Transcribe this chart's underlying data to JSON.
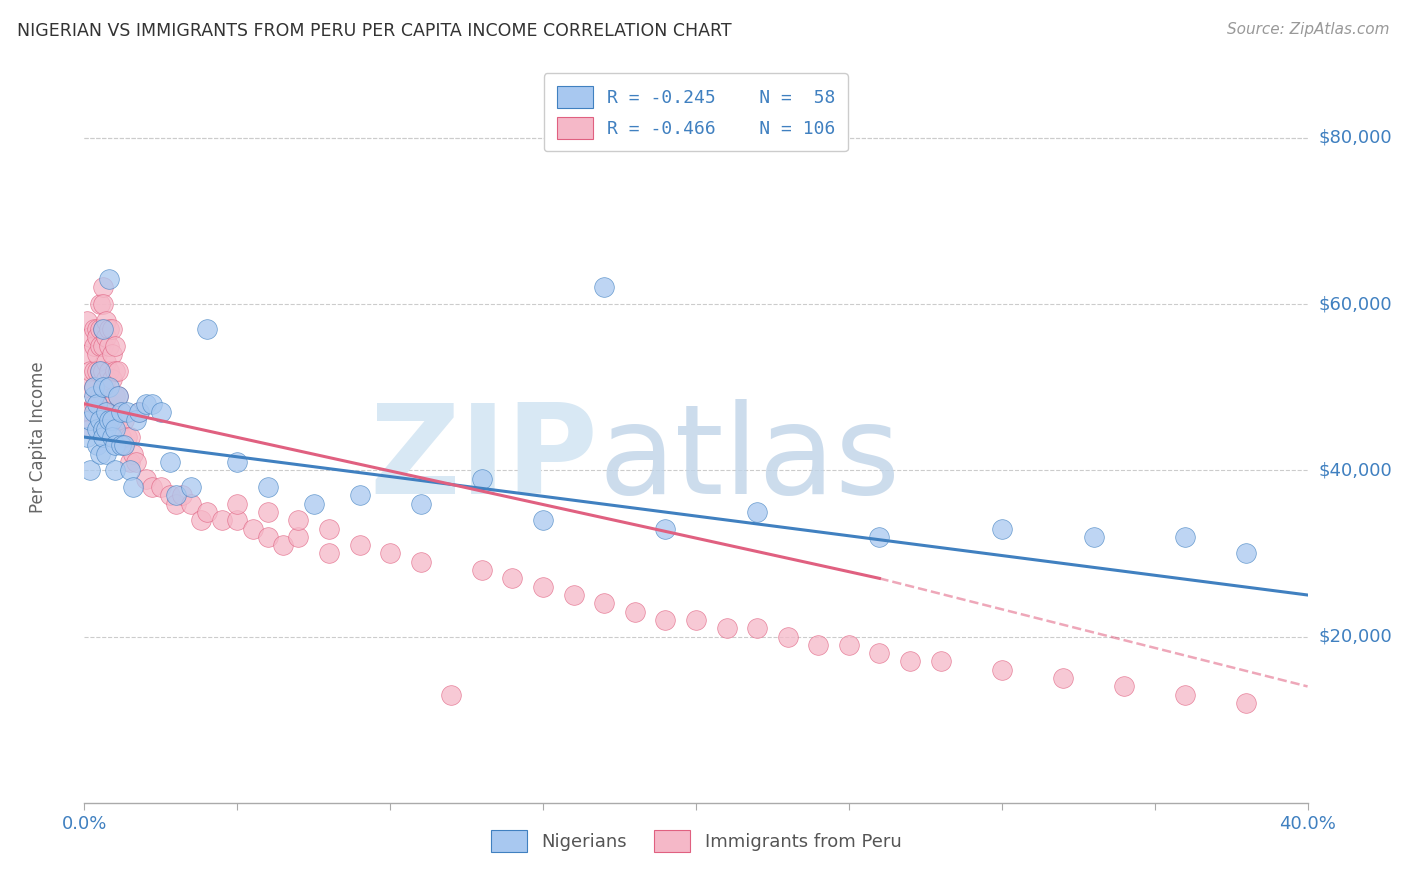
{
  "title": "NIGERIAN VS IMMIGRANTS FROM PERU PER CAPITA INCOME CORRELATION CHART",
  "source": "Source: ZipAtlas.com",
  "ylabel": "Per Capita Income",
  "ytick_labels": [
    "$20,000",
    "$40,000",
    "$60,000",
    "$80,000"
  ],
  "ytick_values": [
    20000,
    40000,
    60000,
    80000
  ],
  "blue_color": "#A8C8F0",
  "pink_color": "#F5B8C8",
  "blue_line_color": "#4080C0",
  "pink_line_color": "#E06080",
  "blue_scatter": {
    "x": [
      0.001,
      0.002,
      0.002,
      0.003,
      0.003,
      0.003,
      0.004,
      0.004,
      0.004,
      0.005,
      0.005,
      0.005,
      0.006,
      0.006,
      0.006,
      0.006,
      0.007,
      0.007,
      0.007,
      0.008,
      0.008,
      0.008,
      0.009,
      0.009,
      0.01,
      0.01,
      0.01,
      0.011,
      0.012,
      0.012,
      0.013,
      0.014,
      0.015,
      0.016,
      0.017,
      0.018,
      0.02,
      0.022,
      0.025,
      0.028,
      0.03,
      0.035,
      0.04,
      0.05,
      0.06,
      0.075,
      0.09,
      0.11,
      0.15,
      0.19,
      0.22,
      0.26,
      0.3,
      0.33,
      0.36,
      0.38,
      0.13,
      0.17
    ],
    "y": [
      44000,
      46000,
      40000,
      47000,
      49000,
      50000,
      45000,
      43000,
      48000,
      52000,
      46000,
      42000,
      57000,
      50000,
      45000,
      44000,
      47000,
      45000,
      42000,
      63000,
      50000,
      46000,
      46000,
      44000,
      45000,
      43000,
      40000,
      49000,
      43000,
      47000,
      43000,
      47000,
      40000,
      38000,
      46000,
      47000,
      48000,
      48000,
      47000,
      41000,
      37000,
      38000,
      57000,
      41000,
      38000,
      36000,
      37000,
      36000,
      34000,
      33000,
      35000,
      32000,
      33000,
      32000,
      32000,
      30000,
      39000,
      62000
    ]
  },
  "pink_scatter": {
    "x": [
      0.001,
      0.001,
      0.001,
      0.002,
      0.002,
      0.002,
      0.002,
      0.003,
      0.003,
      0.003,
      0.003,
      0.003,
      0.004,
      0.004,
      0.004,
      0.004,
      0.004,
      0.005,
      0.005,
      0.005,
      0.005,
      0.005,
      0.005,
      0.006,
      0.006,
      0.006,
      0.006,
      0.006,
      0.006,
      0.006,
      0.007,
      0.007,
      0.007,
      0.007,
      0.007,
      0.007,
      0.008,
      0.008,
      0.008,
      0.008,
      0.009,
      0.009,
      0.009,
      0.009,
      0.01,
      0.01,
      0.01,
      0.01,
      0.011,
      0.011,
      0.011,
      0.012,
      0.012,
      0.013,
      0.013,
      0.014,
      0.015,
      0.015,
      0.016,
      0.017,
      0.018,
      0.02,
      0.022,
      0.025,
      0.028,
      0.03,
      0.032,
      0.035,
      0.038,
      0.04,
      0.045,
      0.05,
      0.055,
      0.06,
      0.065,
      0.07,
      0.08,
      0.09,
      0.1,
      0.11,
      0.12,
      0.13,
      0.14,
      0.15,
      0.16,
      0.17,
      0.18,
      0.19,
      0.2,
      0.21,
      0.22,
      0.23,
      0.24,
      0.25,
      0.26,
      0.27,
      0.28,
      0.3,
      0.32,
      0.34,
      0.36,
      0.38,
      0.05,
      0.06,
      0.07,
      0.08
    ],
    "y": [
      50000,
      54000,
      58000,
      56000,
      52000,
      47000,
      45000,
      57000,
      55000,
      52000,
      50000,
      48000,
      57000,
      56000,
      54000,
      52000,
      48000,
      60000,
      57000,
      55000,
      52000,
      49000,
      47000,
      62000,
      60000,
      57000,
      55000,
      52000,
      49000,
      47000,
      58000,
      56000,
      53000,
      51000,
      48000,
      46000,
      57000,
      55000,
      52000,
      48000,
      57000,
      54000,
      51000,
      48000,
      55000,
      52000,
      49000,
      46000,
      52000,
      49000,
      46000,
      47000,
      44000,
      46000,
      43000,
      44000,
      44000,
      41000,
      42000,
      41000,
      47000,
      39000,
      38000,
      38000,
      37000,
      36000,
      37000,
      36000,
      34000,
      35000,
      34000,
      34000,
      33000,
      32000,
      31000,
      32000,
      30000,
      31000,
      30000,
      29000,
      13000,
      28000,
      27000,
      26000,
      25000,
      24000,
      23000,
      22000,
      22000,
      21000,
      21000,
      20000,
      19000,
      19000,
      18000,
      17000,
      17000,
      16000,
      15000,
      14000,
      13000,
      12000,
      36000,
      35000,
      34000,
      33000
    ]
  },
  "blue_line": {
    "x0": 0.0,
    "x1": 0.4,
    "y0": 44000,
    "y1": 25000
  },
  "pink_line_solid": {
    "x0": 0.0,
    "x1": 0.26,
    "y0": 48000,
    "y1": 27000
  },
  "pink_line_dash": {
    "x0": 0.26,
    "x1": 0.4,
    "y0": 27000,
    "y1": 14000
  },
  "xlim": [
    0.0,
    0.4
  ],
  "ylim": [
    0,
    88000
  ],
  "xtick_positions": [
    0.0,
    0.05,
    0.1,
    0.15,
    0.2,
    0.25,
    0.3,
    0.35,
    0.4
  ],
  "background_color": "#FFFFFF"
}
